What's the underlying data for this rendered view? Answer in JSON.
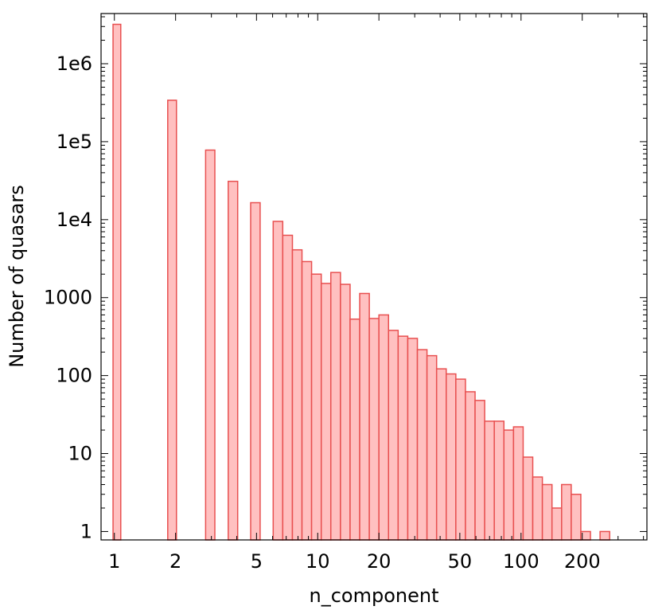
{
  "chart_data": {
    "type": "bar",
    "title": "",
    "xlabel": "n_component",
    "ylabel": "Number of quasars",
    "x_scale": "log",
    "y_scale": "log",
    "xlim": [
      0.86,
      416
    ],
    "ylim": [
      0.78,
      4400000
    ],
    "grid": false,
    "legend": "none",
    "colors": {
      "bar_fill": "#ffc0c0",
      "bar_edge": "#e85050"
    },
    "x_ticks": [
      {
        "value": 1,
        "label": "1"
      },
      {
        "value": 2,
        "label": "2"
      },
      {
        "value": 5,
        "label": "5"
      },
      {
        "value": 10,
        "label": "10"
      },
      {
        "value": 20,
        "label": "20"
      },
      {
        "value": 50,
        "label": "50"
      },
      {
        "value": 100,
        "label": "100"
      },
      {
        "value": 200,
        "label": "200"
      }
    ],
    "y_ticks": [
      {
        "value": 1,
        "label": "1"
      },
      {
        "value": 10,
        "label": "10"
      },
      {
        "value": 100,
        "label": "100"
      },
      {
        "value": 1000,
        "label": "1000"
      },
      {
        "value": 10000,
        "label": "1e4"
      },
      {
        "value": 100000,
        "label": "1e5"
      },
      {
        "value": 1000000,
        "label": "1e6"
      }
    ],
    "bars": [
      {
        "x0": 0.985,
        "x1": 1.075,
        "value": 3200000
      },
      {
        "x0": 1.83,
        "x1": 2.02,
        "value": 340000
      },
      {
        "x0": 2.81,
        "x1": 3.12,
        "value": 78000
      },
      {
        "x0": 3.63,
        "x1": 4.04,
        "value": 31000
      },
      {
        "x0": 4.68,
        "x1": 5.21,
        "value": 16500
      },
      {
        "x0": 6.04,
        "x1": 6.73,
        "value": 9500
      },
      {
        "x0": 6.73,
        "x1": 7.51,
        "value": 6300
      },
      {
        "x0": 7.51,
        "x1": 8.37,
        "value": 4100
      },
      {
        "x0": 8.37,
        "x1": 9.33,
        "value": 2900
      },
      {
        "x0": 9.33,
        "x1": 10.41,
        "value": 2000
      },
      {
        "x0": 10.41,
        "x1": 11.6,
        "value": 1520
      },
      {
        "x0": 11.6,
        "x1": 12.94,
        "value": 2100
      },
      {
        "x0": 12.94,
        "x1": 14.43,
        "value": 1480
      },
      {
        "x0": 14.43,
        "x1": 16.09,
        "value": 530
      },
      {
        "x0": 16.09,
        "x1": 17.94,
        "value": 1130
      },
      {
        "x0": 17.94,
        "x1": 20.0,
        "value": 540
      },
      {
        "x0": 20.0,
        "x1": 22.3,
        "value": 600
      },
      {
        "x0": 22.3,
        "x1": 24.87,
        "value": 380
      },
      {
        "x0": 24.87,
        "x1": 27.73,
        "value": 320
      },
      {
        "x0": 27.73,
        "x1": 30.92,
        "value": 300
      },
      {
        "x0": 30.92,
        "x1": 34.47,
        "value": 215
      },
      {
        "x0": 34.47,
        "x1": 38.44,
        "value": 180
      },
      {
        "x0": 38.44,
        "x1": 42.86,
        "value": 122
      },
      {
        "x0": 42.86,
        "x1": 47.79,
        "value": 105
      },
      {
        "x0": 47.79,
        "x1": 53.29,
        "value": 90
      },
      {
        "x0": 53.29,
        "x1": 59.42,
        "value": 62
      },
      {
        "x0": 59.42,
        "x1": 66.25,
        "value": 48
      },
      {
        "x0": 66.25,
        "x1": 73.87,
        "value": 26
      },
      {
        "x0": 73.87,
        "x1": 82.37,
        "value": 26
      },
      {
        "x0": 82.37,
        "x1": 91.84,
        "value": 20
      },
      {
        "x0": 91.84,
        "x1": 102.41,
        "value": 22
      },
      {
        "x0": 102.41,
        "x1": 114.19,
        "value": 9
      },
      {
        "x0": 114.19,
        "x1": 127.32,
        "value": 5
      },
      {
        "x0": 127.32,
        "x1": 141.97,
        "value": 4
      },
      {
        "x0": 141.97,
        "x1": 158.3,
        "value": 2
      },
      {
        "x0": 158.3,
        "x1": 176.51,
        "value": 4
      },
      {
        "x0": 176.51,
        "x1": 196.81,
        "value": 3
      },
      {
        "x0": 196.81,
        "x1": 219.45,
        "value": 1
      },
      {
        "x0": 244.69,
        "x1": 272.84,
        "value": 1
      }
    ]
  }
}
